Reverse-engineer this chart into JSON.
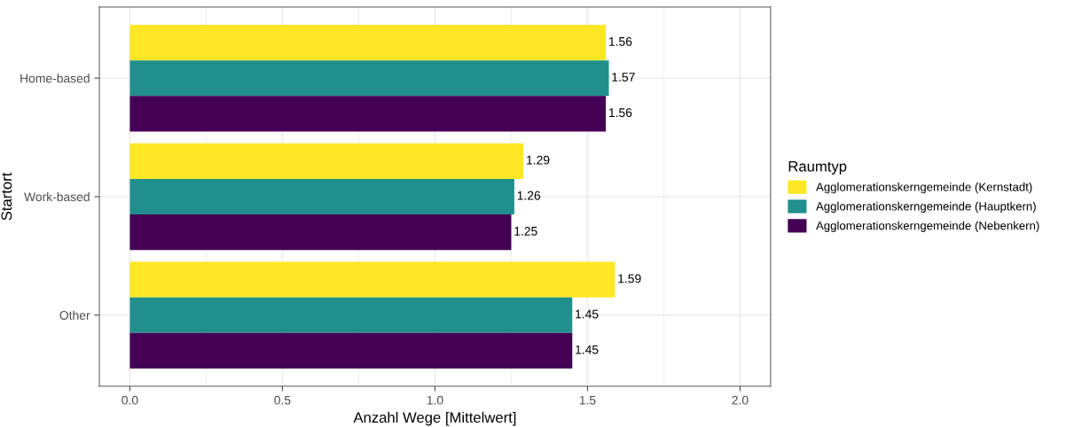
{
  "chart_data": {
    "type": "bar",
    "orientation": "horizontal",
    "xlabel": "Anzahl Wege [Mittelwert]",
    "ylabel": "Startort",
    "legend_title": "Raumtyp",
    "categories": [
      "Home-based",
      "Work-based",
      "Other"
    ],
    "series": [
      {
        "name": "Agglomerationskerngemeinde (Kernstadt)",
        "color": "#fde725",
        "values": [
          1.56,
          1.29,
          1.59
        ]
      },
      {
        "name": "Agglomerationskerngemeinde (Hauptkern)",
        "color": "#21908c",
        "values": [
          1.57,
          1.26,
          1.45
        ]
      },
      {
        "name": "Agglomerationskerngemeinde (Nebenkern)",
        "color": "#440154",
        "values": [
          1.56,
          1.25,
          1.45
        ]
      }
    ],
    "xlim": [
      -0.1,
      2.1
    ],
    "xticks": [
      {
        "value": 0,
        "label": "0.0"
      },
      0.5,
      {
        "value": 1,
        "label": "1.0"
      },
      1.5,
      {
        "value": 2,
        "label": "2.0"
      }
    ],
    "data_labels": true,
    "grid": true,
    "legend": "right"
  }
}
